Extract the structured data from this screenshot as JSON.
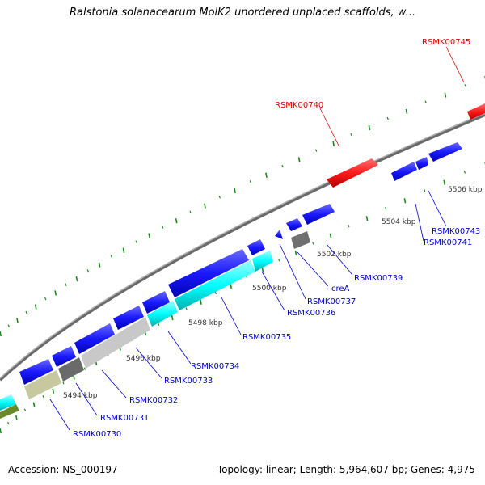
{
  "title": "Ralstonia solanacearum MolK2 unordered unplaced scaffolds, w...",
  "footer": {
    "accession": "Accession: NS_000197",
    "summary": "Topology: linear; Length: 5,964,607 bp; Genes: 4,975"
  },
  "colors": {
    "forward_gene": "#1a1aff",
    "reverse_gene_highlight": "#ff1a1a",
    "cyan_gene": "#00ffff",
    "gray_gene": "#c0c0c0",
    "darkgray_gene": "#707070",
    "olive_gene": "#c8c8a0",
    "backbone": "#808080",
    "tick": "#1a8a1a",
    "label_blue": "#0000cc",
    "label_red": "#dd0000"
  },
  "scale_labels": [
    "5494 kbp",
    "5496 kbp",
    "5498 kbp",
    "5500 kbp",
    "5502 kbp",
    "5504 kbp",
    "5506 kbp"
  ],
  "gene_labels": [
    {
      "name": "RSMK00730",
      "color": "blue"
    },
    {
      "name": "RSMK00731",
      "color": "blue"
    },
    {
      "name": "RSMK00732",
      "color": "blue"
    },
    {
      "name": "RSMK00733",
      "color": "blue"
    },
    {
      "name": "RSMK00734",
      "color": "blue"
    },
    {
      "name": "RSMK00735",
      "color": "blue"
    },
    {
      "name": "RSMK00736",
      "color": "blue"
    },
    {
      "name": "RSMK00737",
      "color": "blue"
    },
    {
      "name": "creA",
      "color": "blue"
    },
    {
      "name": "RSMK00739",
      "color": "blue"
    },
    {
      "name": "RSMK00740",
      "color": "red"
    },
    {
      "name": "RSMK00741",
      "color": "blue"
    },
    {
      "name": "RSMK00743",
      "color": "blue"
    },
    {
      "name": "RSMK00745",
      "color": "red"
    }
  ]
}
